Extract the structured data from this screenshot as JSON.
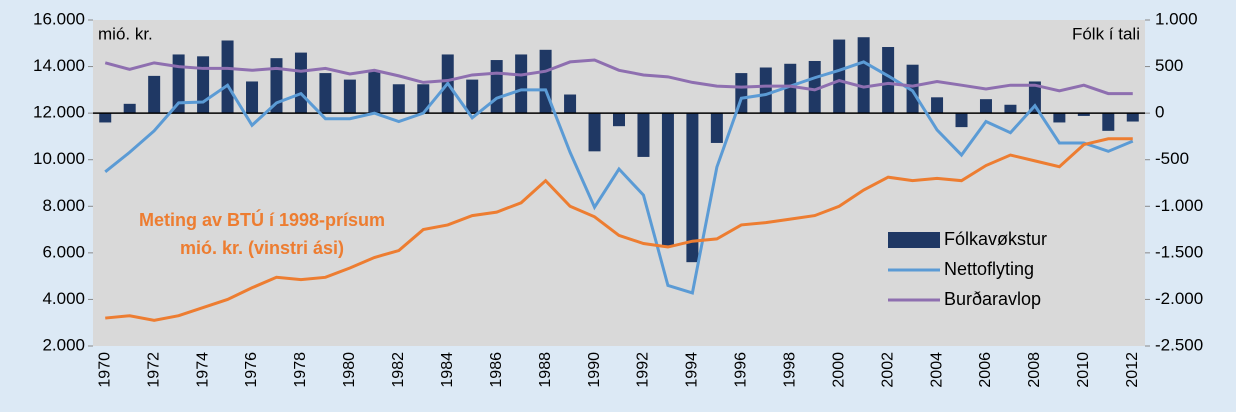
{
  "chart_data": {
    "type": "bar",
    "left_unit": "mió. kr.",
    "right_unit": "Fólk í tali",
    "annotation": [
      "Meting av BTÚ í 1998-prísum",
      "mió. kr. (vinstri ási)"
    ],
    "annotation_color": "#ed7d31",
    "categories": [
      "1970",
      null,
      "1972",
      null,
      "1974",
      null,
      "1976",
      null,
      "1978",
      null,
      "1980",
      null,
      "1982",
      null,
      "1984",
      null,
      "1986",
      null,
      "1988",
      null,
      "1990",
      null,
      "1992",
      null,
      "1994",
      null,
      "1996",
      null,
      "1998",
      null,
      "2000",
      null,
      "2002",
      null,
      "2004",
      null,
      "2006",
      null,
      "2008",
      null,
      "2010",
      null,
      "2012"
    ],
    "ylim": [
      2000,
      16000
    ],
    "yticks": [
      {
        "value": 2000,
        "label": "2.000"
      },
      {
        "value": 4000,
        "label": "4.000"
      },
      {
        "value": 6000,
        "label": "6.000"
      },
      {
        "value": 8000,
        "label": "8.000"
      },
      {
        "value": 10000,
        "label": "10.000"
      },
      {
        "value": 12000,
        "label": "12.000"
      },
      {
        "value": 14000,
        "label": "14.000"
      },
      {
        "value": 16000,
        "label": "16.000"
      }
    ],
    "y2lim": [
      -2500,
      1000
    ],
    "y2ticks": [
      {
        "value": -2500,
        "label": "-2.500"
      },
      {
        "value": -2000,
        "label": "-2.000"
      },
      {
        "value": -1500,
        "label": "-1.500"
      },
      {
        "value": -1000,
        "label": "-1.000"
      },
      -500,
      0,
      500,
      {
        "value": 1000,
        "label": "1.000"
      }
    ],
    "grid": false,
    "legend": "lower right",
    "series": [
      {
        "name": "Fólkavøkstur",
        "type": "bar",
        "axis": "y2",
        "color": "#1f3864",
        "values": [
          -100,
          100,
          400,
          630,
          610,
          780,
          340,
          590,
          650,
          430,
          360,
          450,
          310,
          310,
          630,
          360,
          570,
          630,
          680,
          200,
          -410,
          -140,
          -470,
          -1420,
          -1600,
          -320,
          430,
          490,
          530,
          560,
          790,
          815,
          710,
          520,
          170,
          -150,
          150,
          90,
          340,
          -100,
          -30,
          -190,
          -90
        ]
      },
      {
        "name": "Nettoflyting",
        "type": "line",
        "axis": "y2",
        "color": "#5b9bd5",
        "values": [
          -630,
          -420,
          -190,
          110,
          120,
          300,
          -130,
          110,
          210,
          -60,
          -60,
          0,
          -90,
          0,
          320,
          -50,
          160,
          250,
          250,
          -420,
          -1010,
          -600,
          -880,
          -1850,
          -1930,
          -580,
          160,
          200,
          290,
          380,
          460,
          550,
          400,
          240,
          -180,
          -450,
          -90,
          -210,
          80,
          -320,
          -320,
          -410,
          -300
        ]
      },
      {
        "name": "Burðaravlop",
        "type": "line",
        "axis": "y2",
        "color": "#8e6fb0",
        "values": [
          540,
          470,
          540,
          500,
          480,
          480,
          460,
          480,
          450,
          480,
          420,
          460,
          400,
          330,
          350,
          410,
          430,
          410,
          450,
          550,
          570,
          460,
          410,
          390,
          330,
          290,
          280,
          290,
          290,
          250,
          350,
          280,
          320,
          290,
          340,
          300,
          260,
          300,
          300,
          240,
          300,
          210,
          210
        ]
      },
      {
        "type": "line",
        "axis": "y",
        "color": "#ed7d31",
        "values": [
          3200,
          3300,
          3100,
          3300,
          3650,
          4000,
          4500,
          4950,
          4850,
          4950,
          5350,
          5800,
          6100,
          7000,
          7200,
          7600,
          7750,
          8150,
          9100,
          8000,
          7550,
          6750,
          6400,
          6250,
          6500,
          6600,
          7200,
          7300,
          7450,
          7600,
          8000,
          8700,
          9250,
          9100,
          9200,
          9100,
          9750,
          10200,
          9950,
          9700,
          10650,
          10900,
          10900
        ]
      }
    ]
  }
}
